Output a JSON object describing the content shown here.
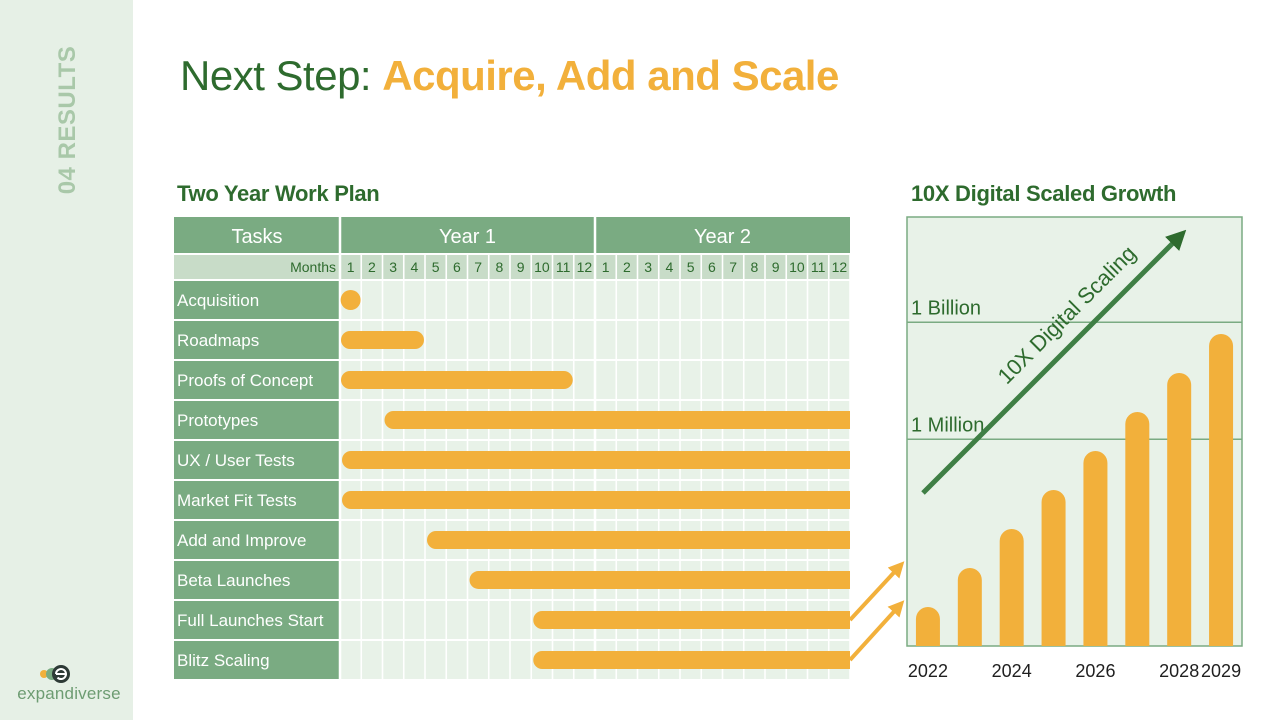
{
  "sidebar": {
    "section_label": "04 RESULTS",
    "logo_text": "expandiverse"
  },
  "title": {
    "prefix": "Next Step: ",
    "accent": "Acquire, Add and Scale"
  },
  "colors": {
    "accent": "#f2b03b",
    "dark_green": "#2e6b2e",
    "header_green": "#7aab82",
    "grid_fill": "#e8f2e8",
    "sidebar_fill": "#e6f0e6"
  },
  "chart_data": [
    {
      "type": "gantt",
      "title": "Two Year Work Plan",
      "header_tasks": "Tasks",
      "months_label": "Months",
      "years": [
        {
          "label": "Year 1",
          "months": [
            "1",
            "2",
            "3",
            "4",
            "5",
            "6",
            "7",
            "8",
            "9",
            "10",
            "11",
            "12"
          ]
        },
        {
          "label": "Year 2",
          "months": [
            "1",
            "2",
            "3",
            "4",
            "5",
            "6",
            "7",
            "8",
            "9",
            "10",
            "11",
            "12"
          ]
        }
      ],
      "tasks": [
        {
          "name": "Acquisition",
          "start": 1,
          "end": 1
        },
        {
          "name": "Roadmaps",
          "start": 1,
          "end": 4
        },
        {
          "name": "Proofs of Concept",
          "start": 1,
          "end": 11
        },
        {
          "name": "Prototypes",
          "start": 3,
          "end": 24
        },
        {
          "name": "UX / User Tests",
          "start": 1,
          "end": 24
        },
        {
          "name": "Market Fit Tests",
          "start": 1,
          "end": 24
        },
        {
          "name": "Add and Improve",
          "start": 5,
          "end": 24
        },
        {
          "name": "Beta Launches",
          "start": 7,
          "end": 24
        },
        {
          "name": "Full Launches Start",
          "start": 10,
          "end": 24
        },
        {
          "name": "Blitz Scaling",
          "start": 10,
          "end": 24
        }
      ]
    },
    {
      "type": "bar",
      "title": "10X Digital Scaled Growth",
      "x": [
        2022,
        2023,
        2024,
        2025,
        2026,
        2027,
        2028,
        2029
      ],
      "values": [
        1,
        2,
        3,
        4,
        5,
        6,
        7,
        8
      ],
      "x_tick_labels": [
        "2022",
        "2024",
        "2026",
        "2028",
        "2029"
      ],
      "reference_lines": [
        {
          "label": "1 Million",
          "value": 5.3
        },
        {
          "label": "1 Billion",
          "value": 8.3
        }
      ],
      "ymax": 11.0,
      "annotation": "10X Digital Scaling"
    }
  ]
}
